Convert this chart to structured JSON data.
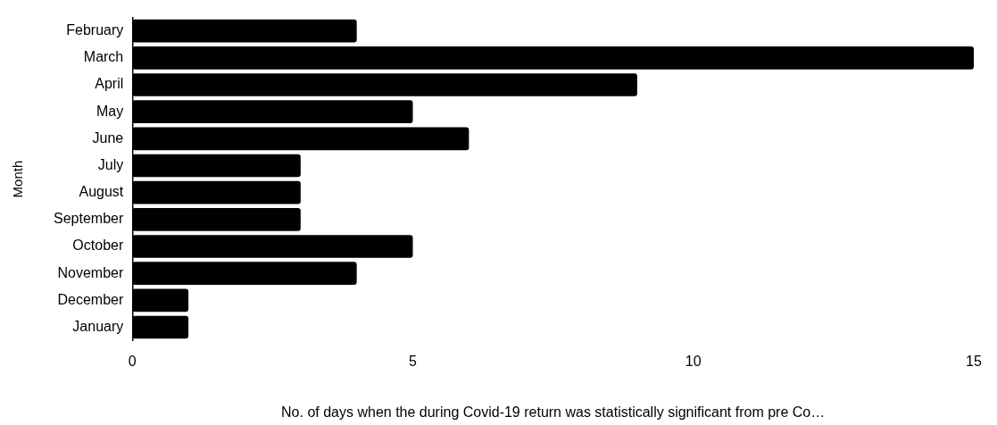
{
  "chart_data": {
    "type": "bar",
    "orientation": "horizontal",
    "xlabel": "No. of days when the during Covid-19 return was statistically significant from pre Co…",
    "ylabel": "Month",
    "categories": [
      "February",
      "March",
      "April",
      "May",
      "June",
      "July",
      "August",
      "September",
      "October",
      "November",
      "December",
      "January"
    ],
    "values": [
      4,
      15,
      9,
      5,
      6,
      3,
      3,
      3,
      5,
      4,
      1,
      1
    ],
    "color": "#000000",
    "xlim": [
      0,
      15
    ],
    "xticks": [
      0,
      5,
      10,
      15
    ]
  }
}
